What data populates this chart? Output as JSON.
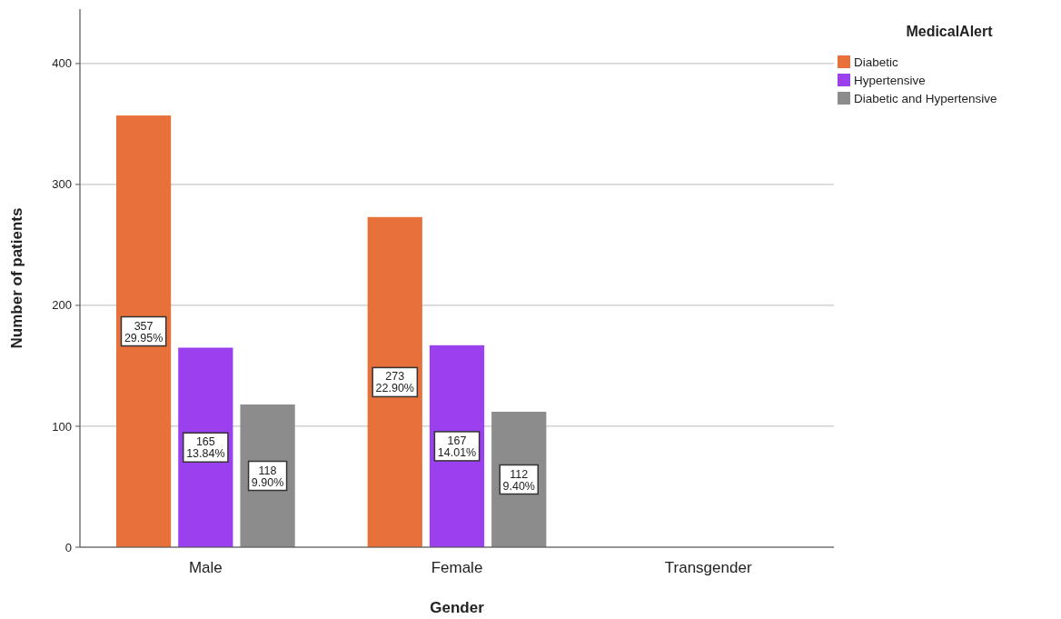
{
  "chart_data": {
    "type": "bar",
    "xlabel": "Gender",
    "ylabel": "Number of patients",
    "legend_title": "MedicalAlert",
    "categories": [
      "Male",
      "Female",
      "Transgender"
    ],
    "series": [
      {
        "name": "Diabetic",
        "color": "#e8703a",
        "values": [
          357,
          273,
          null
        ],
        "value_labels": [
          "357\n29.95%",
          "273\n22.90%",
          null
        ]
      },
      {
        "name": "Hypertensive",
        "color": "#9b40ee",
        "values": [
          165,
          167,
          null
        ],
        "value_labels": [
          "165\n13.84%",
          "167\n14.01%",
          null
        ]
      },
      {
        "name": "Diabetic and Hypertensive",
        "color": "#8c8c8c",
        "values": [
          118,
          112,
          null
        ],
        "value_labels": [
          "118\n9.90%",
          "112\n9.40%",
          null
        ]
      }
    ],
    "ylim": [
      0,
      445
    ],
    "yticks": [
      0,
      100,
      200,
      300,
      400
    ],
    "grid": "y",
    "legend": "top right"
  }
}
